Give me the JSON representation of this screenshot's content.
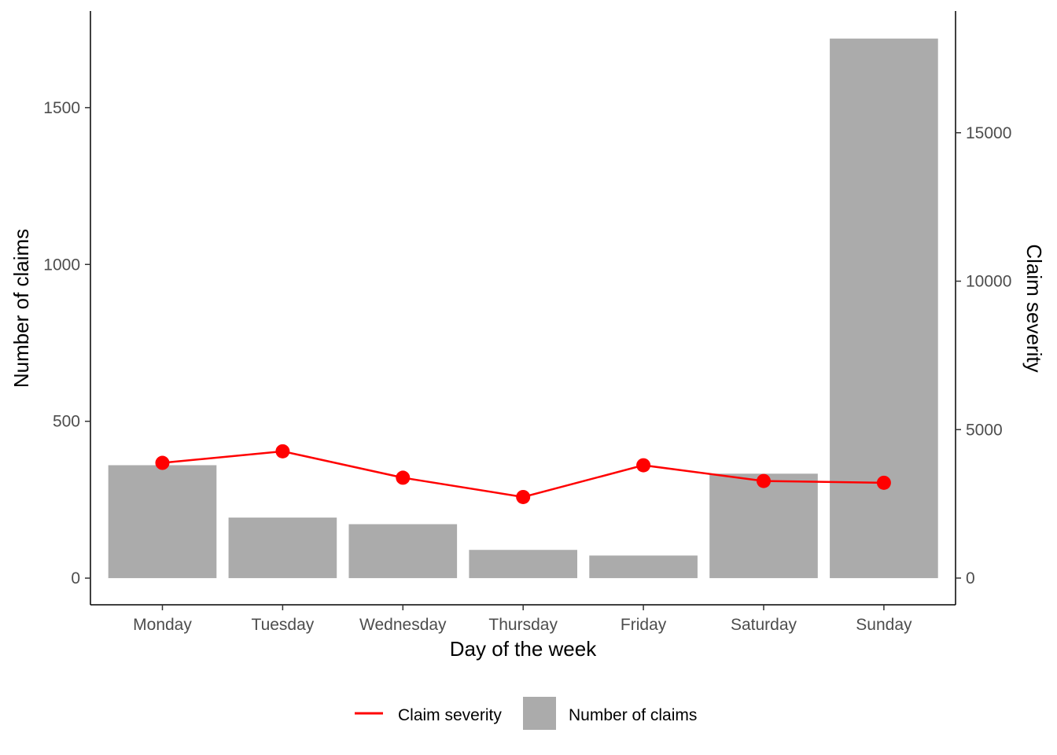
{
  "chart_data": {
    "type": "bar",
    "categories": [
      "Monday",
      "Tuesday",
      "Wednesday",
      "Thursday",
      "Friday",
      "Saturday",
      "Sunday"
    ],
    "xlabel": "Day of the week",
    "ylabel": "Number of claims",
    "y2label": "Claim severity",
    "ylim": [
      -85,
      1808
    ],
    "y2lim": [
      -900,
      19100
    ],
    "yticks": [
      0,
      500,
      1000,
      1500
    ],
    "y2ticks": [
      0,
      5000,
      10000,
      15000
    ],
    "grid": false,
    "legend_position": "bottom",
    "series": [
      {
        "name": "Number of claims",
        "type": "bar",
        "axis": "left",
        "color": "#ABABAB",
        "values": [
          360,
          193,
          172,
          90,
          72,
          333,
          1720
        ]
      },
      {
        "name": "Claim severity",
        "type": "line",
        "axis": "right",
        "color": "#FF0000",
        "values": [
          3880,
          4270,
          3380,
          2730,
          3800,
          3270,
          3210
        ]
      }
    ]
  }
}
